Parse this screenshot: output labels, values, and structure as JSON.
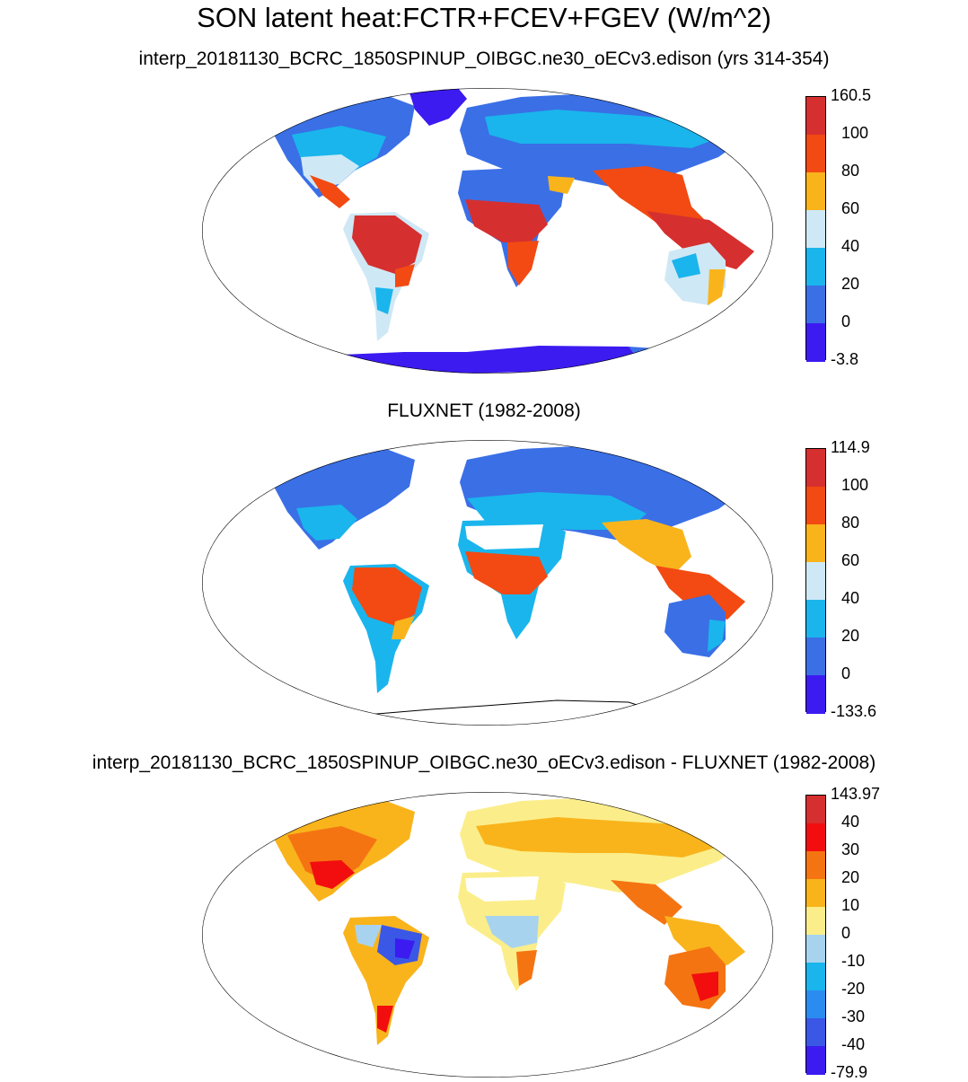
{
  "figure": {
    "title": "SON latent heat:FCTR+FCEV+FGEV (W/m^2)"
  },
  "panels": [
    {
      "id": "model",
      "subtitle": "interp_20181130_BCRC_1850SPINUP_OIBGC.ne30_oECv3.edison (yrs 314-354)",
      "colorbar": {
        "labels": [
          "160.5",
          "100",
          "80",
          "60",
          "40",
          "20",
          "0",
          "-3.8"
        ],
        "colors": [
          "#d62f2f",
          "#f24a12",
          "#f9b41c",
          "#cfe8f5",
          "#1ab5ec",
          "#3a6fe6",
          "#3b1bf0"
        ]
      }
    },
    {
      "id": "obs",
      "subtitle": "FLUXNET (1982-2008)",
      "colorbar": {
        "labels": [
          "114.9",
          "100",
          "80",
          "60",
          "40",
          "20",
          "0",
          "-133.6"
        ],
        "colors": [
          "#d62f2f",
          "#f24a12",
          "#f9b41c",
          "#cfe8f5",
          "#1ab5ec",
          "#3a6fe6",
          "#3b1bf0"
        ]
      }
    },
    {
      "id": "diff",
      "subtitle": "interp_20181130_BCRC_1850SPINUP_OIBGC.ne30_oECv3.edison - FLUXNET (1982-2008)",
      "colorbar": {
        "labels": [
          "143.97",
          "40",
          "30",
          "20",
          "10",
          "0",
          "-10",
          "-20",
          "-30",
          "-40",
          "-79.9"
        ],
        "colors": [
          "#d62f2f",
          "#f20e0e",
          "#f57412",
          "#f9b41c",
          "#fbee8a",
          "#a8d3ee",
          "#1ab5ec",
          "#2a8cf0",
          "#3a57e6",
          "#3b1bf0"
        ]
      }
    }
  ]
}
